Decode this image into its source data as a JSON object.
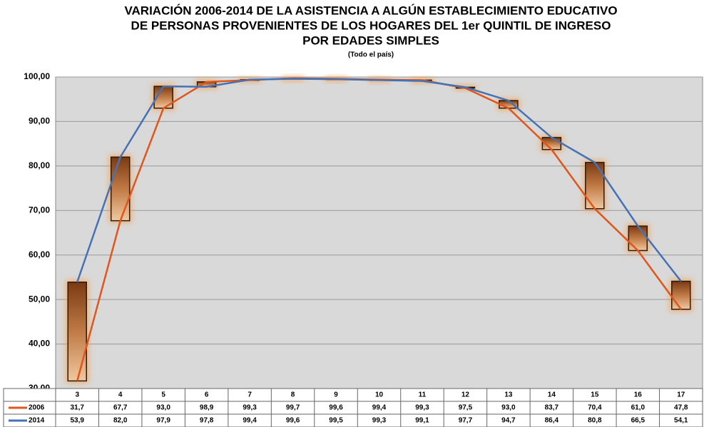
{
  "chart_data": {
    "type": "line",
    "title": [
      "VARIACIÓN 2006-2014 DE LA ASISTENCIA A ALGÚN ESTABLECIMIENTO EDUCATIVO",
      "DE PERSONAS PROVENIENTES DE LOS HOGARES DEL 1er QUINTIL DE INGRESO",
      "POR EDADES SIMPLES"
    ],
    "subtitle": "(Todo el país)",
    "categories": [
      "3",
      "4",
      "5",
      "6",
      "7",
      "8",
      "9",
      "10",
      "11",
      "12",
      "13",
      "14",
      "15",
      "16",
      "17"
    ],
    "series": [
      {
        "name": "2006",
        "color": "#e0561c",
        "values": [
          31.7,
          67.7,
          93.0,
          98.9,
          99.3,
          99.7,
          99.6,
          99.4,
          99.3,
          97.5,
          93.0,
          83.7,
          70.4,
          61.0,
          47.8
        ],
        "value_labels": [
          "31,7",
          "67,7",
          "93,0",
          "98,9",
          "99,3",
          "99,7",
          "99,6",
          "99,4",
          "99,3",
          "97,5",
          "93,0",
          "83,7",
          "70,4",
          "61,0",
          "47,8"
        ]
      },
      {
        "name": "2014",
        "color": "#4672b4",
        "values": [
          53.9,
          82.0,
          97.9,
          97.8,
          99.4,
          99.6,
          99.5,
          99.3,
          99.1,
          97.7,
          94.7,
          86.4,
          80.8,
          66.5,
          54.1
        ],
        "value_labels": [
          "53,9",
          "82,0",
          "97,9",
          "97,8",
          "99,4",
          "99,6",
          "99,5",
          "99,3",
          "99,1",
          "97,7",
          "94,7",
          "86,4",
          "80,8",
          "66,5",
          "54,1"
        ]
      }
    ],
    "ylim": [
      30,
      100
    ],
    "yticks": [
      {
        "value": 30,
        "label": "30,00"
      },
      {
        "value": 40,
        "label": "40,00"
      },
      {
        "value": 50,
        "label": "50,00"
      },
      {
        "value": 60,
        "label": "60,00"
      },
      {
        "value": 70,
        "label": "70,00"
      },
      {
        "value": 80,
        "label": "80,00"
      },
      {
        "value": 90,
        "label": "90,00"
      },
      {
        "value": 100,
        "label": "100,00"
      }
    ],
    "grid": true
  }
}
